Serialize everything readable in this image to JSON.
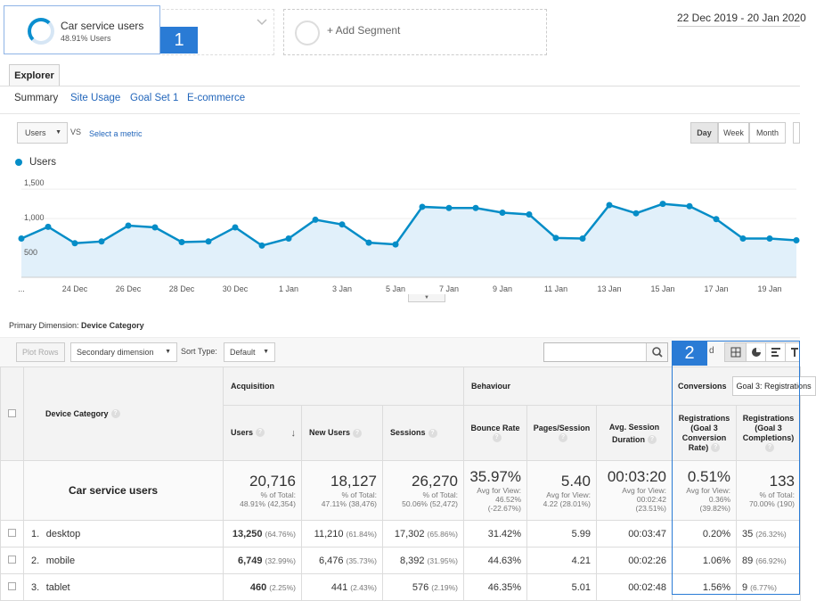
{
  "segments": {
    "active": {
      "name": "Car service users",
      "subtitle": "48.91% Users",
      "badge": "1"
    },
    "add_label": "+ Add Segment"
  },
  "date_range": "22 Dec 2019 - 20 Jan 2020",
  "tabs": {
    "explorer": "Explorer"
  },
  "subnav": [
    "Summary",
    "Site Usage",
    "Goal Set 1",
    "E-commerce"
  ],
  "chart_controls": {
    "metric": "Users",
    "vs": "VS",
    "select_metric": "Select a metric",
    "granularity": [
      "Day",
      "Week",
      "Month"
    ],
    "active_granularity": "Day"
  },
  "chart_data": {
    "type": "area",
    "legend": [
      "Users"
    ],
    "series_color": "#058dc7",
    "fill_color": "#e1f0fa",
    "yticks": [
      "1,500",
      "1,000",
      "500"
    ],
    "ytick_values": [
      1500,
      1000,
      500
    ],
    "xticks": [
      "...",
      "24 Dec",
      "26 Dec",
      "28 Dec",
      "30 Dec",
      "1 Jan",
      "3 Jan",
      "5 Jan",
      "7 Jan",
      "9 Jan",
      "11 Jan",
      "13 Jan",
      "15 Jan",
      "17 Jan",
      "19 Jan"
    ],
    "x": [
      "22 Dec",
      "23 Dec",
      "24 Dec",
      "25 Dec",
      "26 Dec",
      "27 Dec",
      "28 Dec",
      "29 Dec",
      "30 Dec",
      "31 Dec",
      "1 Jan",
      "2 Jan",
      "3 Jan",
      "4 Jan",
      "5 Jan",
      "6 Jan",
      "7 Jan",
      "8 Jan",
      "9 Jan",
      "10 Jan",
      "11 Jan",
      "12 Jan",
      "13 Jan",
      "14 Jan",
      "15 Jan",
      "16 Jan",
      "17 Jan",
      "18 Jan",
      "19 Jan",
      "20 Jan"
    ],
    "values": [
      660,
      860,
      580,
      610,
      880,
      850,
      600,
      610,
      850,
      540,
      660,
      980,
      900,
      590,
      560,
      1200,
      1180,
      1180,
      1100,
      1070,
      670,
      660,
      1230,
      1090,
      1250,
      1210,
      990,
      660,
      660,
      630
    ],
    "ylim": [
      0,
      1700
    ]
  },
  "primary_dimension": {
    "label": "Primary Dimension:",
    "value": "Device Category"
  },
  "table_controls": {
    "plot_rows": "Plot Rows",
    "secondary": "Secondary dimension",
    "sort_label": "Sort Type:",
    "sort_value": "Default",
    "badge": "2",
    "adv": "d"
  },
  "table": {
    "dim_header": "Device Category",
    "groups": {
      "acquisition": "Acquisition",
      "behaviour": "Behaviour",
      "conversions": "Conversions",
      "goal": "Goal 3: Registrations"
    },
    "columns": [
      "Users",
      "New Users",
      "Sessions",
      "Bounce Rate",
      "Pages/Session",
      "Avg. Session Duration",
      "Registrations (Goal 3 Conversion Rate)",
      "Registrations (Goal 3 Completions)"
    ],
    "summary": {
      "name": "Car service users",
      "cells": [
        {
          "big": "20,716",
          "l1": "% of Total:",
          "l2": "48.91% (42,354)"
        },
        {
          "big": "18,127",
          "l1": "% of Total:",
          "l2": "47.11% (38,476)"
        },
        {
          "big": "26,270",
          "l1": "% of Total:",
          "l2": "50.06% (52,472)"
        },
        {
          "big": "35.97%",
          "l1": "Avg for View:",
          "l2": "46.52%",
          "l3": "(-22.67%)"
        },
        {
          "big": "5.40",
          "l1": "Avg for View:",
          "l2": "4.22 (28.01%)"
        },
        {
          "big": "00:03:20",
          "l1": "Avg for View:",
          "l2": "00:02:42",
          "l3": "(23.51%)"
        },
        {
          "big": "0.51%",
          "l1": "Avg for View:",
          "l2": "0.36%",
          "l3": "(39.82%)"
        },
        {
          "big": "133",
          "l1": "% of Total:",
          "l2": "70.00% (190)"
        }
      ]
    },
    "rows": [
      {
        "idx": "1.",
        "name": "desktop",
        "users": "13,250",
        "users_pct": "(64.76%)",
        "new_users": "11,210",
        "new_pct": "(61.84%)",
        "sessions": "17,302",
        "sess_pct": "(65.86%)",
        "bounce": "31.42%",
        "pages": "5.99",
        "duration": "00:03:47",
        "conv_rate": "0.20%",
        "completions": "35",
        "comp_pct": "(26.32%)"
      },
      {
        "idx": "2.",
        "name": "mobile",
        "users": "6,749",
        "users_pct": "(32.99%)",
        "new_users": "6,476",
        "new_pct": "(35.73%)",
        "sessions": "8,392",
        "sess_pct": "(31.95%)",
        "bounce": "44.63%",
        "pages": "4.21",
        "duration": "00:02:26",
        "conv_rate": "1.06%",
        "completions": "89",
        "comp_pct": "(66.92%)"
      },
      {
        "idx": "3.",
        "name": "tablet",
        "users": "460",
        "users_pct": "(2.25%)",
        "new_users": "441",
        "new_pct": "(2.43%)",
        "sessions": "576",
        "sess_pct": "(2.19%)",
        "bounce": "46.35%",
        "pages": "5.01",
        "duration": "00:02:48",
        "conv_rate": "1.56%",
        "completions": "9",
        "comp_pct": "(6.77%)"
      }
    ]
  }
}
